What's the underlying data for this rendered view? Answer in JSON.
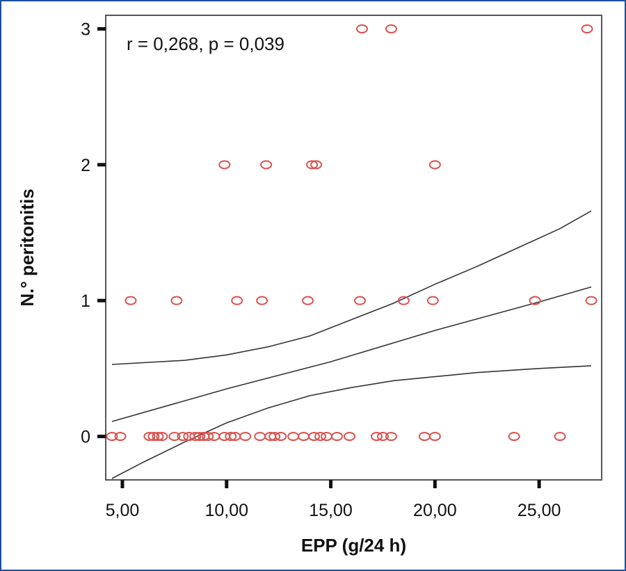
{
  "chart_data": {
    "type": "scatter",
    "title": "",
    "xlabel": "EPP (g/24 h)",
    "ylabel": "N.° peritonitis",
    "annotation": "r = 0,268, p = 0,039",
    "xlim": [
      4.2,
      28
    ],
    "ylim": [
      -0.32,
      3.1
    ],
    "x_ticks": [
      5,
      10,
      15,
      20,
      25
    ],
    "x_tick_labels": [
      "5,00",
      "10,00",
      "15,00",
      "20,00",
      "25,00"
    ],
    "y_ticks": [
      0,
      1,
      2,
      3
    ],
    "y_tick_labels": [
      "0",
      "1",
      "2",
      "3"
    ],
    "grid": false,
    "marker_color": "#d9534f",
    "line_color": "#333333",
    "points": [
      {
        "x": 4.5,
        "y": 0
      },
      {
        "x": 4.9,
        "y": 0
      },
      {
        "x": 6.3,
        "y": 0
      },
      {
        "x": 6.5,
        "y": 0
      },
      {
        "x": 6.7,
        "y": 0
      },
      {
        "x": 6.9,
        "y": 0
      },
      {
        "x": 7.5,
        "y": 0
      },
      {
        "x": 7.9,
        "y": 0
      },
      {
        "x": 8.2,
        "y": 0
      },
      {
        "x": 8.5,
        "y": 0
      },
      {
        "x": 8.7,
        "y": 0
      },
      {
        "x": 8.9,
        "y": 0
      },
      {
        "x": 9.1,
        "y": 0
      },
      {
        "x": 9.4,
        "y": 0
      },
      {
        "x": 9.9,
        "y": 0
      },
      {
        "x": 10.2,
        "y": 0
      },
      {
        "x": 10.4,
        "y": 0
      },
      {
        "x": 10.9,
        "y": 0
      },
      {
        "x": 11.6,
        "y": 0
      },
      {
        "x": 12.1,
        "y": 0
      },
      {
        "x": 12.3,
        "y": 0
      },
      {
        "x": 12.6,
        "y": 0
      },
      {
        "x": 13.2,
        "y": 0
      },
      {
        "x": 13.7,
        "y": 0
      },
      {
        "x": 14.2,
        "y": 0
      },
      {
        "x": 14.5,
        "y": 0
      },
      {
        "x": 14.8,
        "y": 0
      },
      {
        "x": 15.3,
        "y": 0
      },
      {
        "x": 15.9,
        "y": 0
      },
      {
        "x": 17.2,
        "y": 0
      },
      {
        "x": 17.5,
        "y": 0
      },
      {
        "x": 17.9,
        "y": 0
      },
      {
        "x": 19.5,
        "y": 0
      },
      {
        "x": 20.0,
        "y": 0
      },
      {
        "x": 23.8,
        "y": 0
      },
      {
        "x": 26.0,
        "y": 0
      },
      {
        "x": 5.4,
        "y": 1
      },
      {
        "x": 7.6,
        "y": 1
      },
      {
        "x": 10.5,
        "y": 1
      },
      {
        "x": 11.7,
        "y": 1
      },
      {
        "x": 13.9,
        "y": 1
      },
      {
        "x": 16.4,
        "y": 1
      },
      {
        "x": 18.5,
        "y": 1
      },
      {
        "x": 19.9,
        "y": 1
      },
      {
        "x": 24.8,
        "y": 1
      },
      {
        "x": 27.5,
        "y": 1
      },
      {
        "x": 9.9,
        "y": 2
      },
      {
        "x": 11.9,
        "y": 2
      },
      {
        "x": 14.1,
        "y": 2
      },
      {
        "x": 14.3,
        "y": 2
      },
      {
        "x": 20.0,
        "y": 2
      },
      {
        "x": 16.5,
        "y": 3
      },
      {
        "x": 17.9,
        "y": 3
      },
      {
        "x": 27.3,
        "y": 3
      }
    ],
    "fit_line": [
      {
        "x": 4.5,
        "y": 0.11
      },
      {
        "x": 10,
        "y": 0.35
      },
      {
        "x": 15,
        "y": 0.55
      },
      {
        "x": 20,
        "y": 0.78
      },
      {
        "x": 25,
        "y": 0.99
      },
      {
        "x": 27.5,
        "y": 1.1
      }
    ],
    "ci_upper": [
      {
        "x": 4.5,
        "y": 0.53
      },
      {
        "x": 8,
        "y": 0.56
      },
      {
        "x": 10,
        "y": 0.6
      },
      {
        "x": 12,
        "y": 0.66
      },
      {
        "x": 14,
        "y": 0.74
      },
      {
        "x": 16,
        "y": 0.86
      },
      {
        "x": 18,
        "y": 0.98
      },
      {
        "x": 20,
        "y": 1.12
      },
      {
        "x": 22,
        "y": 1.25
      },
      {
        "x": 24,
        "y": 1.39
      },
      {
        "x": 26,
        "y": 1.53
      },
      {
        "x": 27.5,
        "y": 1.66
      }
    ],
    "ci_lower": [
      {
        "x": 4.5,
        "y": -0.31
      },
      {
        "x": 6,
        "y": -0.19
      },
      {
        "x": 8,
        "y": -0.04
      },
      {
        "x": 10,
        "y": 0.1
      },
      {
        "x": 12,
        "y": 0.21
      },
      {
        "x": 14,
        "y": 0.3
      },
      {
        "x": 16,
        "y": 0.36
      },
      {
        "x": 18,
        "y": 0.41
      },
      {
        "x": 20,
        "y": 0.44
      },
      {
        "x": 22,
        "y": 0.47
      },
      {
        "x": 25,
        "y": 0.5
      },
      {
        "x": 27.5,
        "y": 0.52
      }
    ]
  }
}
